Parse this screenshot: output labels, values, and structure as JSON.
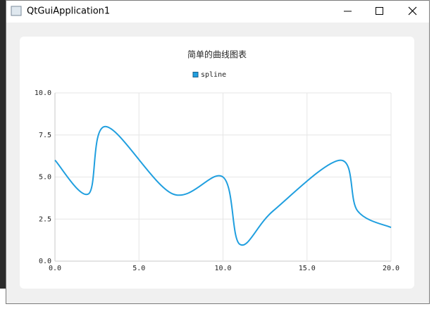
{
  "window": {
    "title": "QtGuiApplication1"
  },
  "chart_data": {
    "type": "line",
    "smooth": true,
    "title": "简单的曲线图表",
    "legend_position": "top",
    "grid": true,
    "x": [
      0,
      2,
      3,
      7,
      10,
      11,
      13,
      17,
      18,
      20
    ],
    "series": [
      {
        "name": "spline",
        "color": "#209fdf",
        "values": [
          6,
          4,
          8,
          4,
          5,
          1,
          3,
          6,
          3,
          2
        ]
      }
    ],
    "xlim": [
      0,
      20
    ],
    "xticks": [
      {
        "value": 0,
        "label": "0.0"
      },
      {
        "value": 5,
        "label": "5.0"
      },
      {
        "value": 10,
        "label": "10.0"
      },
      {
        "value": 15,
        "label": "15.0"
      },
      {
        "value": 20,
        "label": "20.0"
      }
    ],
    "ylim": [
      0,
      10
    ],
    "yticks": [
      {
        "value": 0,
        "label": "0.0"
      },
      {
        "value": 2.5,
        "label": "2.5"
      },
      {
        "value": 5,
        "label": "5.0"
      },
      {
        "value": 7.5,
        "label": "7.5"
      },
      {
        "value": 10,
        "label": "10.0"
      }
    ]
  }
}
